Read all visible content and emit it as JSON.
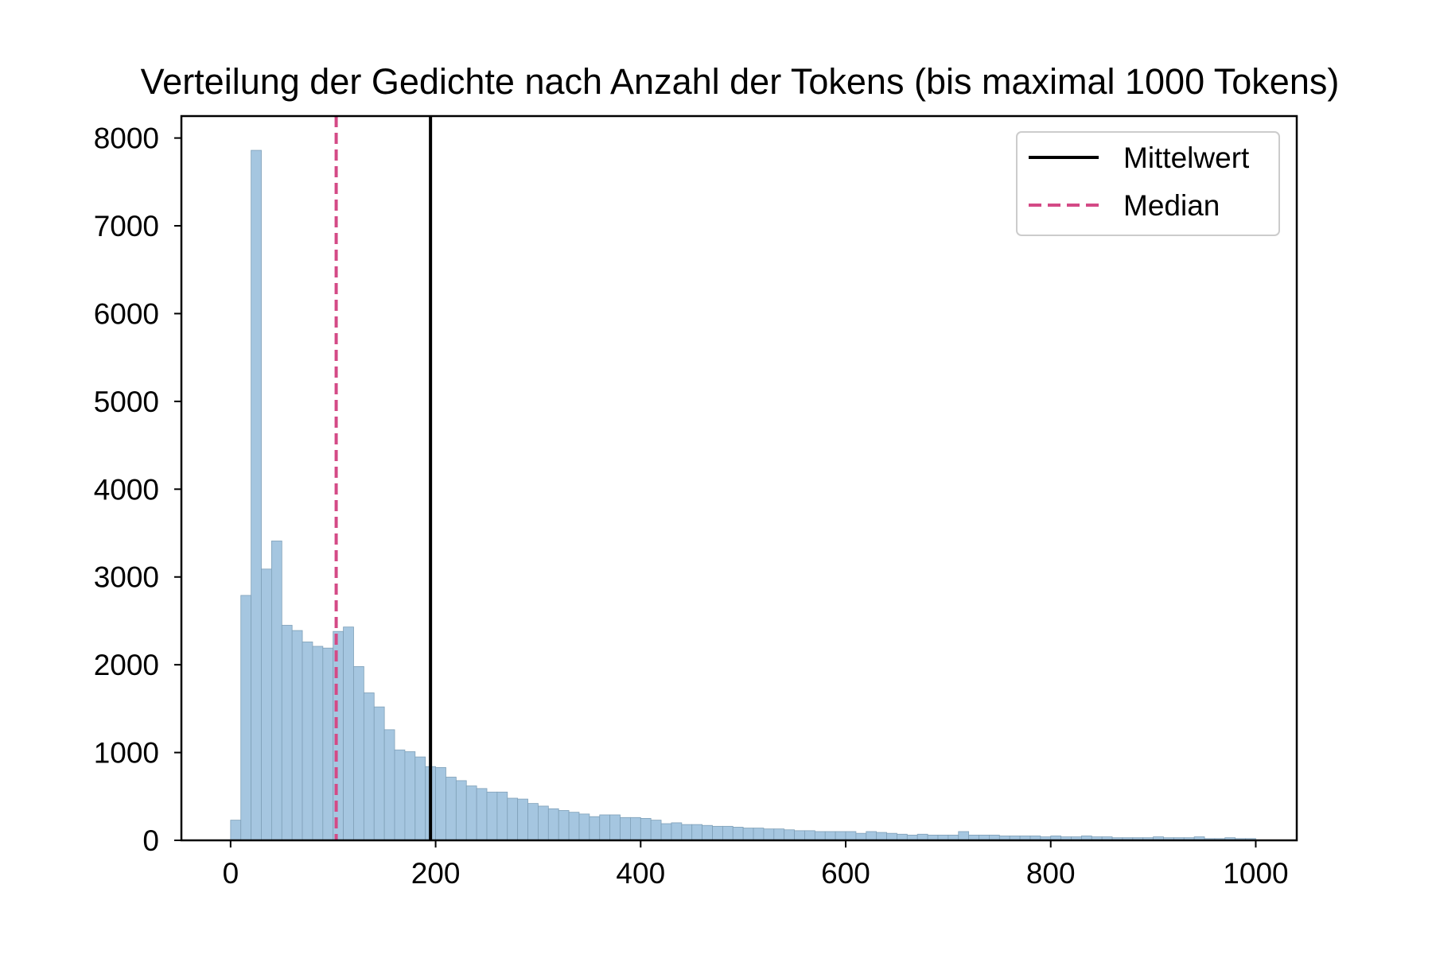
{
  "chart_data": {
    "type": "bar",
    "title": "Verteilung der Gedichte nach Anzahl der Tokens (bis maximal 1000 Tokens)",
    "xlabel": "",
    "ylabel": "",
    "xlim": [
      -48,
      1040
    ],
    "ylim": [
      0,
      8250
    ],
    "xticks": [
      0,
      200,
      400,
      600,
      800,
      1000
    ],
    "yticks": [
      0,
      1000,
      2000,
      3000,
      4000,
      5000,
      6000,
      7000,
      8000
    ],
    "bin_start": 0,
    "bin_width": 10,
    "values": [
      230,
      2790,
      7860,
      3090,
      3410,
      2450,
      2390,
      2260,
      2210,
      2190,
      2380,
      2430,
      1980,
      1680,
      1520,
      1260,
      1030,
      1010,
      950,
      840,
      830,
      720,
      680,
      620,
      590,
      550,
      550,
      480,
      470,
      420,
      390,
      360,
      340,
      320,
      300,
      270,
      290,
      290,
      260,
      260,
      250,
      230,
      190,
      200,
      180,
      180,
      170,
      160,
      160,
      150,
      140,
      140,
      130,
      130,
      120,
      110,
      110,
      100,
      100,
      100,
      100,
      80,
      100,
      90,
      80,
      70,
      60,
      70,
      60,
      60,
      60,
      100,
      60,
      60,
      60,
      50,
      50,
      50,
      50,
      40,
      50,
      40,
      40,
      50,
      40,
      40,
      30,
      30,
      30,
      30,
      40,
      30,
      30,
      30,
      40,
      20,
      20,
      30,
      20,
      20
    ],
    "mean": 195,
    "median": 103,
    "bar_color": "#a5c6e0",
    "bar_edge_color": "#7fa0b8",
    "mean_color": "#000000",
    "median_color": "#d44a86",
    "grid": false,
    "legend": {
      "placement": "top-right",
      "items": [
        {
          "label": "Mittelwert",
          "style": "solid",
          "color": "#000000"
        },
        {
          "label": "Median",
          "style": "dashed",
          "color": "#d44a86"
        }
      ]
    }
  }
}
